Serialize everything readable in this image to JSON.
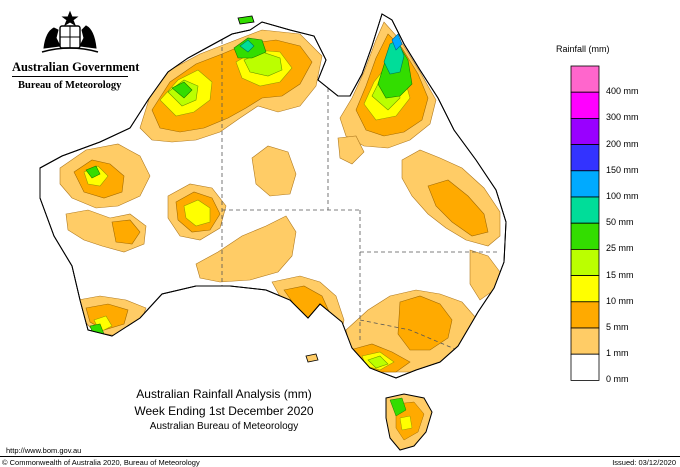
{
  "header": {
    "government": "Australian Government",
    "agency": "Bureau of Meteorology",
    "crest_icon": "coat-of-arms-icon"
  },
  "legend": {
    "title": "Rainfall (mm)",
    "classes": [
      {
        "label": "400 mm",
        "color": "#ff66cc"
      },
      {
        "label": "300 mm",
        "color": "#ff00ff"
      },
      {
        "label": "200 mm",
        "color": "#9900ff"
      },
      {
        "label": "150 mm",
        "color": "#3333ff"
      },
      {
        "label": "100 mm",
        "color": "#00aaff"
      },
      {
        "label": "50 mm",
        "color": "#00dd99"
      },
      {
        "label": "25 mm",
        "color": "#33dd00"
      },
      {
        "label": "15 mm",
        "color": "#bbff00"
      },
      {
        "label": "10 mm",
        "color": "#ffff00"
      },
      {
        "label": "5 mm",
        "color": "#ffaa00"
      },
      {
        "label": "1 mm",
        "color": "#ffcc66"
      },
      {
        "label": "0 mm",
        "color": "#ffffff"
      }
    ]
  },
  "captions": {
    "title": "Australian Rainfall Analysis (mm)",
    "period": "Week Ending 1st December 2020",
    "source": "Australian Bureau of Meteorology"
  },
  "footer": {
    "url": "http://www.bom.gov.au",
    "copyright": "© Commonwealth of Australia 2020, Bureau of Meteorology",
    "issued": "Issued: 03/12/2020"
  }
}
